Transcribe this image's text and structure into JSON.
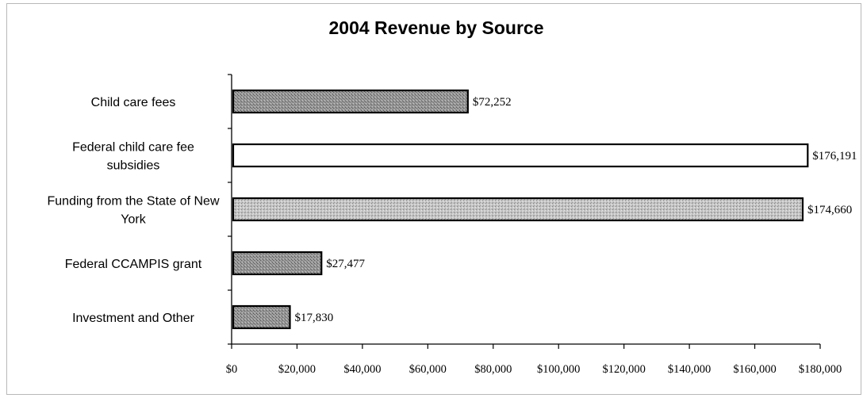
{
  "chart_data": {
    "type": "bar",
    "orientation": "horizontal",
    "title": "2004 Revenue by Source",
    "categories": [
      [
        "Child care fees"
      ],
      [
        "Federal child care fee",
        "subsidies"
      ],
      [
        "Funding from the State of New",
        "York"
      ],
      [
        "Federal CCAMPIS grant"
      ],
      [
        "Investment and Other"
      ]
    ],
    "values": [
      72252,
      176191,
      174660,
      27477,
      17830
    ],
    "value_labels": [
      "$72,252",
      "$176,191",
      "$174,660",
      "$27,477",
      "$17,830"
    ],
    "bar_fills": [
      "dark-gray-texture",
      "white",
      "light-gray-texture",
      "dark-gray-texture",
      "dark-gray-texture"
    ],
    "xlim": [
      0,
      180000
    ],
    "x_ticks": [
      0,
      20000,
      40000,
      60000,
      80000,
      100000,
      120000,
      140000,
      160000,
      180000
    ],
    "x_tick_labels": [
      "$0",
      "$20,000",
      "$40,000",
      "$60,000",
      "$80,000",
      "$100,000",
      "$120,000",
      "$140,000",
      "$160,000",
      "$180,000"
    ],
    "xlabel": "",
    "ylabel": "",
    "grid": false,
    "legend": "none"
  }
}
